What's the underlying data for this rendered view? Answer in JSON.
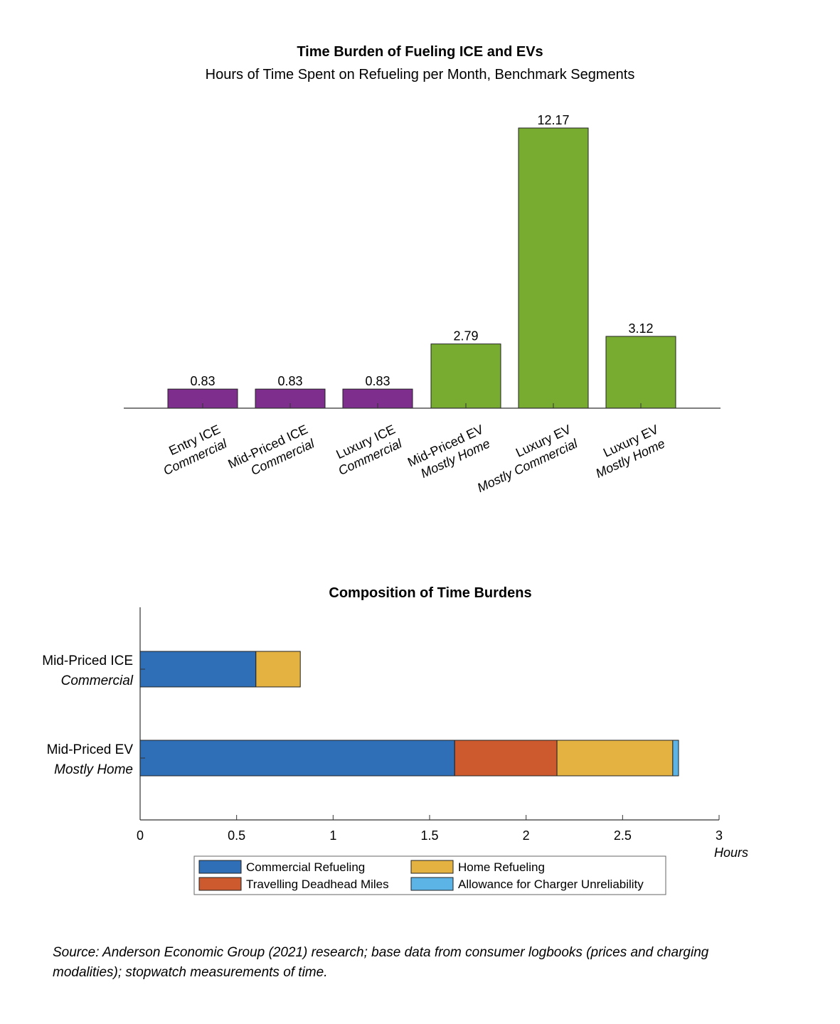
{
  "page": {
    "source_note": "Source: Anderson Economic Group (2021) research; base data from consumer logbooks (prices and charging modalities); stopwatch measurements of time."
  },
  "chart_data": [
    {
      "type": "bar",
      "title": "Time Burden of Fueling ICE and EVs",
      "subtitle": "Hours of Time Spent on Refueling per Month, Benchmark Segments",
      "categories": [
        [
          "Entry ICE",
          "Commercial"
        ],
        [
          "Mid-Priced ICE",
          "Commercial"
        ],
        [
          "Luxury ICE",
          "Commercial"
        ],
        [
          "Mid-Priced EV",
          "Mostly Home"
        ],
        [
          "Luxury EV",
          "Mostly Commercial"
        ],
        [
          "Luxury EV",
          "Mostly Home"
        ]
      ],
      "values": [
        0.83,
        0.83,
        0.83,
        2.79,
        12.17,
        3.12
      ],
      "value_labels": [
        "0.83",
        "0.83",
        "0.83",
        "2.79",
        "12.17",
        "3.12"
      ],
      "bar_colors": [
        "#7E2F8E",
        "#7E2F8E",
        "#7E2F8E",
        "#77AC30",
        "#77AC30",
        "#77AC30"
      ],
      "ylim": [
        0,
        12.17
      ],
      "xlabel": "",
      "ylabel": ""
    },
    {
      "type": "bar",
      "orientation": "horizontal",
      "stacked": true,
      "title": "Composition of Time Burdens",
      "categories": [
        [
          "Mid-Priced ICE",
          "Commercial"
        ],
        [
          "Mid-Priced EV",
          "Mostly Home"
        ]
      ],
      "series": [
        {
          "name": "Commercial Refueling",
          "color": "#2E6FB7",
          "values": [
            0.6,
            1.63
          ]
        },
        {
          "name": "Travelling Deadhead Miles",
          "color": "#CC5A2E",
          "values": [
            0.0,
            0.53
          ]
        },
        {
          "name": "Home Refueling",
          "color": "#E3B241",
          "values": [
            0.23,
            0.6
          ]
        },
        {
          "name": "Allowance for Charger Unreliability",
          "color": "#5CB4E6",
          "values": [
            0.0,
            0.03
          ]
        }
      ],
      "xlim": [
        0,
        3
      ],
      "xticks": [
        0,
        0.5,
        1,
        1.5,
        2,
        2.5,
        3
      ],
      "xtick_labels": [
        "0",
        "0.5",
        "1",
        "1.5",
        "2",
        "2.5",
        "3"
      ],
      "xlabel": "Hours",
      "legend": [
        "Commercial Refueling",
        "Home Refueling",
        "Travelling Deadhead Miles",
        "Allowance for Charger Unreliability"
      ]
    }
  ]
}
